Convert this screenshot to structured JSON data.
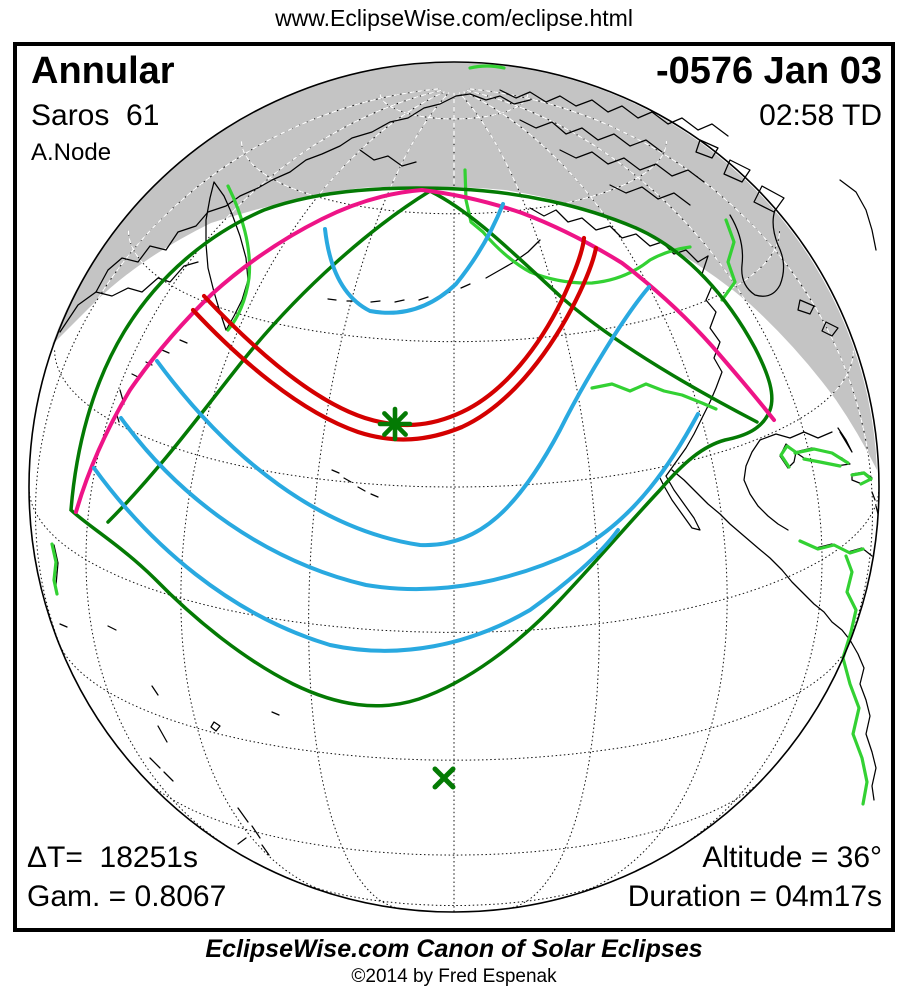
{
  "header": {
    "url": "www.EclipseWise.com/eclipse.html"
  },
  "panel": {
    "type": "Annular",
    "saros": "Saros  61",
    "node": "A.Node",
    "date": "-0576 Jan 03",
    "time": "02:58 TD",
    "delta_t": "ΔT=  18251s",
    "gamma": "Gam. = 0.8067",
    "altitude": "Altitude = 36°",
    "duration": "Duration = 04m17s"
  },
  "footer": {
    "title": "EclipseWise.com Canon of Solar Eclipses",
    "copyright": "©2014 by Fred Espenak"
  },
  "colors": {
    "annular_path": "#d40000",
    "rise_set_curve": "#ee1487",
    "penumbra_limit": "#047a04",
    "magnitude_contour": "#29a9e0",
    "coast_highlight": "#33d133",
    "night_shade": "#c4c4c4",
    "graticule": "#111111",
    "marker": "#047a04"
  }
}
